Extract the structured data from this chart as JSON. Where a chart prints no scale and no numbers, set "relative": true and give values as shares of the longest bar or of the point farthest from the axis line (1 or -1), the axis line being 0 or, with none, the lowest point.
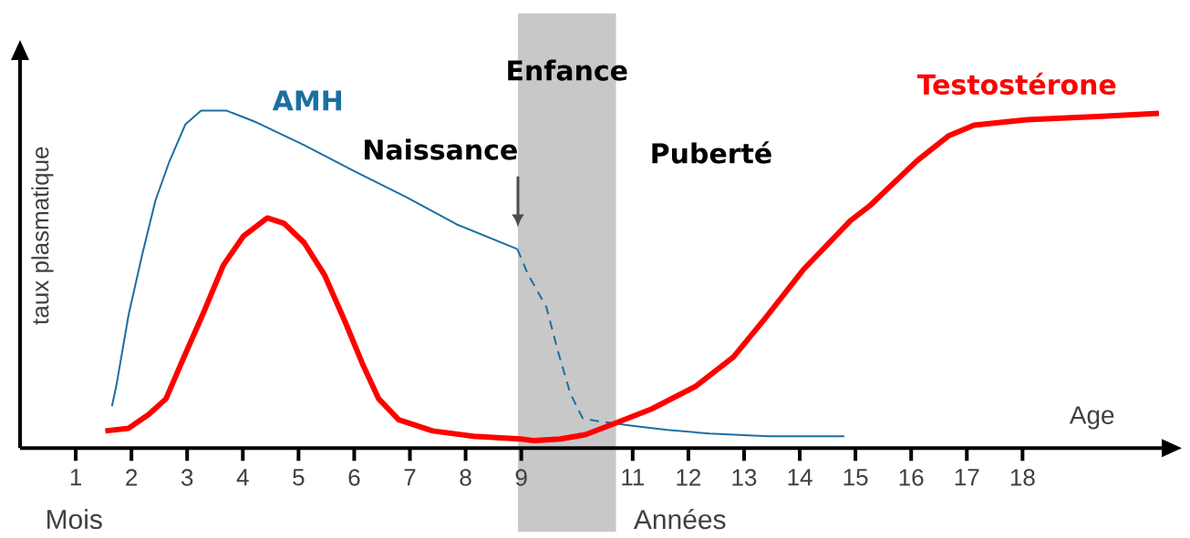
{
  "chart_data": {
    "type": "line",
    "relative": true,
    "ylabel": "taux plasmatique",
    "xlabel": "Age",
    "xlim": [
      0,
      20.5
    ],
    "xticks": [
      1,
      2,
      3,
      4,
      5,
      6,
      7,
      8,
      9,
      11,
      12,
      13,
      14,
      15,
      16,
      17,
      18
    ],
    "bands": [
      {
        "axis": "x",
        "from": 8.94,
        "to": 10.7,
        "label": "Enfance",
        "color": "#c8c8c8"
      }
    ],
    "annotations": [
      {
        "text": "Naissance",
        "x": 8.94,
        "y": 0.655
      },
      "Puberté",
      "Mois",
      "Années"
    ],
    "series": [
      {
        "name": "AMH",
        "color": "#1b6fa0",
        "line_style": "solid",
        "x": [
          1.65,
          1.73,
          1.95,
          2.19,
          2.43,
          2.68,
          2.97,
          3.25,
          3.71,
          4.25,
          5.1,
          6.02,
          6.93,
          7.84,
          8.93
        ],
        "values": [
          0.124,
          0.186,
          0.396,
          0.571,
          0.733,
          0.849,
          0.96,
          1,
          1,
          0.965,
          0.898,
          0.819,
          0.744,
          0.663,
          0.59
        ]
      },
      {
        "color": "#1b6fa0",
        "line_style": "dashed",
        "x": [
          8.93,
          9.12,
          9.45,
          9.66,
          9.88,
          10.1,
          10.33,
          10.61
        ],
        "values": [
          0.59,
          0.515,
          0.418,
          0.286,
          0.162,
          0.089,
          0.081,
          0.075
        ]
      },
      {
        "color": "#1b6fa0",
        "line_style": "solid",
        "x": [
          10.61,
          10.96,
          11.62,
          12.38,
          13.44,
          14.8
        ],
        "values": [
          0.075,
          0.067,
          0.054,
          0.043,
          0.035,
          0.035
        ]
      },
      {
        "name": "Testostérone",
        "color": "#ff0000",
        "line_style": "solid",
        "x": [
          1.53,
          1.95,
          2.31,
          2.62,
          2.92,
          3.28,
          3.65,
          4.01,
          4.44,
          4.74,
          5.1,
          5.47,
          5.83,
          6.14,
          6.44,
          6.8,
          7.41,
          8.14,
          8.99,
          9.24,
          9.7,
          10.15,
          10.63,
          11.34,
          12.13,
          12.81,
          13.38,
          14.06,
          14.91,
          15.25,
          16.11,
          16.67,
          17.13,
          18.08,
          19.51,
          20.45
        ],
        "values": [
          0.051,
          0.059,
          0.1,
          0.146,
          0.261,
          0.396,
          0.542,
          0.628,
          0.682,
          0.666,
          0.609,
          0.512,
          0.377,
          0.253,
          0.146,
          0.084,
          0.051,
          0.035,
          0.027,
          0.022,
          0.027,
          0.04,
          0.07,
          0.116,
          0.183,
          0.27,
          0.385,
          0.528,
          0.674,
          0.717,
          0.852,
          0.925,
          0.957,
          0.973,
          0.984,
          0.992
        ]
      }
    ]
  }
}
